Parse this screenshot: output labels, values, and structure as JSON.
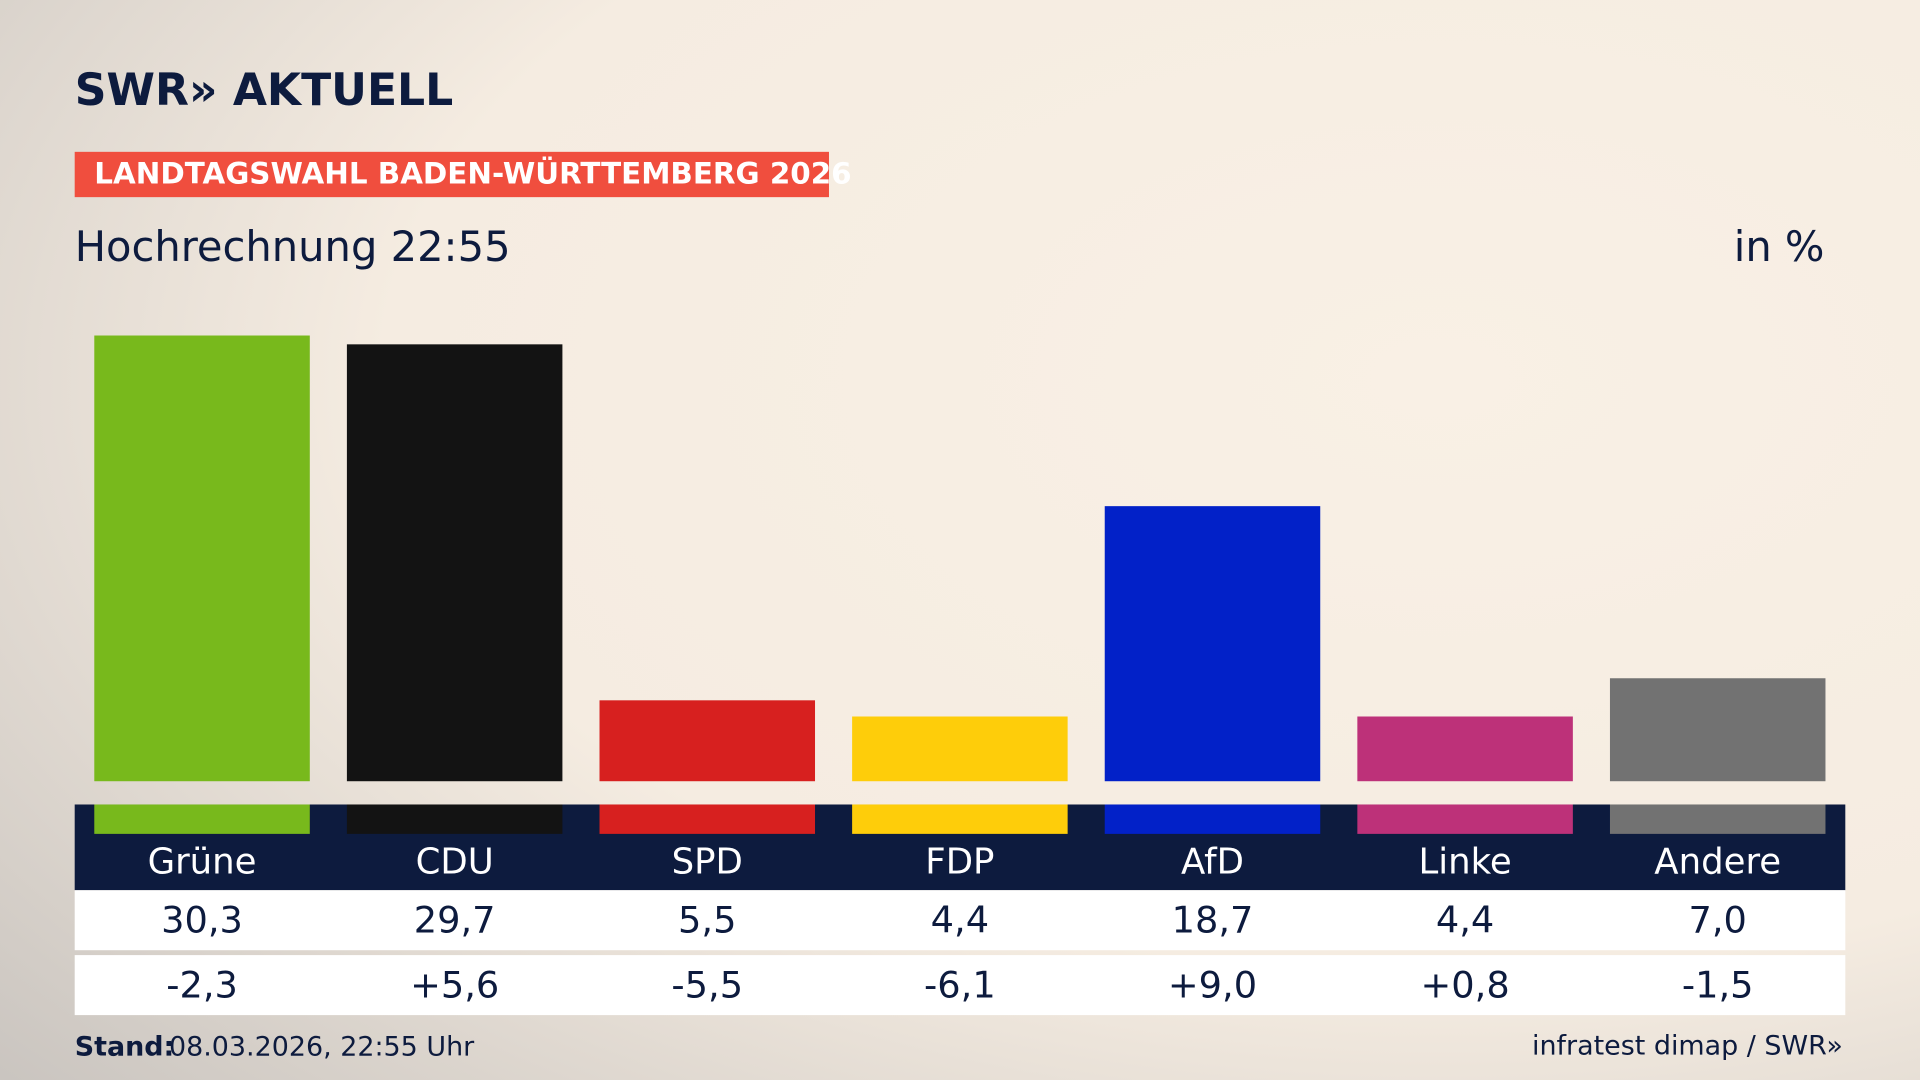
{
  "logo": "SWR» AKTUELL",
  "chart_data": {
    "type": "bar",
    "banner": "LANDTAGSWAHL BADEN-WÜRTTEMBERG 2026",
    "title": "Hochrechnung 22:55",
    "unit": "in %",
    "categories": [
      "Grüne",
      "CDU",
      "SPD",
      "FDP",
      "AfD",
      "Linke",
      "Andere"
    ],
    "values": [
      30.3,
      29.7,
      5.5,
      4.4,
      18.7,
      4.4,
      7.0
    ],
    "value_labels": [
      "30,3",
      "29,7",
      "5,5",
      "4,4",
      "18,7",
      "4,4",
      "7,0"
    ],
    "changes": [
      "-2,3",
      "+5,6",
      "-5,5",
      "-6,1",
      "+9,0",
      "+0,8",
      "-1,5"
    ],
    "colors": [
      "#78b91c",
      "#131313",
      "#d7201f",
      "#fecd0a",
      "#0221c8",
      "#bd3179",
      "#727272"
    ]
  },
  "footer": {
    "label": "Stand:",
    "date": "08.03.2026, 22:55 Uhr",
    "source": "infratest dimap / SWR»"
  }
}
